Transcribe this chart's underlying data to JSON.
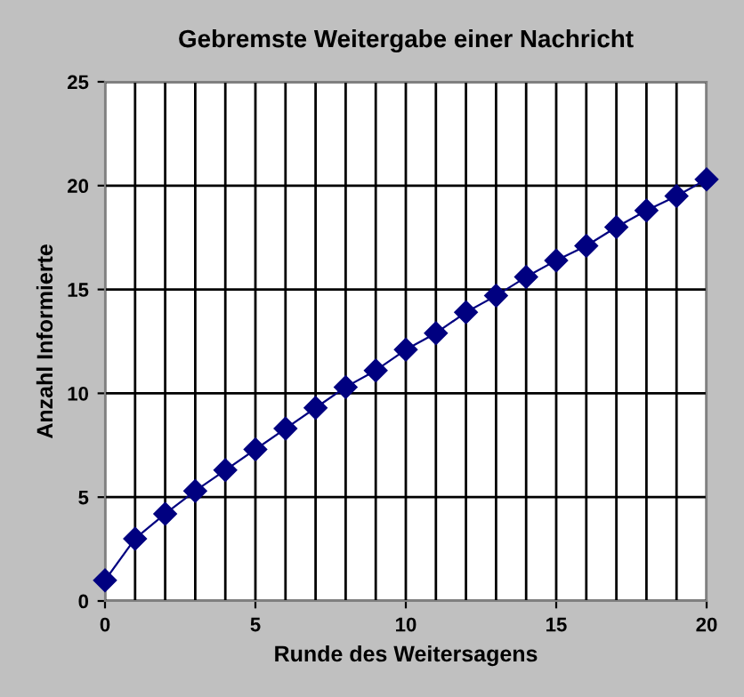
{
  "chart_data": {
    "type": "line",
    "title": "Gebremste Weitergabe einer Nachricht",
    "xlabel": "Runde des Weitersagens",
    "ylabel": "Anzahl Informierte",
    "x": [
      0,
      1,
      2,
      3,
      4,
      5,
      6,
      7,
      8,
      9,
      10,
      11,
      12,
      13,
      14,
      15,
      16,
      17,
      18,
      19,
      20
    ],
    "series": [
      {
        "color": "#000080",
        "values": [
          1.0,
          3.0,
          4.2,
          5.3,
          6.3,
          7.3,
          8.3,
          9.3,
          10.3,
          11.1,
          12.1,
          12.9,
          13.9,
          14.7,
          15.6,
          16.4,
          17.1,
          18.0,
          18.8,
          19.5,
          20.3
        ]
      }
    ],
    "xlim": [
      0,
      20
    ],
    "ylim": [
      0,
      25
    ],
    "xticks": [
      0,
      {
        "value": 1,
        "label": null
      },
      {
        "value": 2,
        "label": null
      },
      {
        "value": 3,
        "label": null
      },
      {
        "value": 4,
        "label": null
      },
      5,
      {
        "value": 6,
        "label": null
      },
      {
        "value": 7,
        "label": null
      },
      {
        "value": 8,
        "label": null
      },
      {
        "value": 9,
        "label": null
      },
      10,
      {
        "value": 11,
        "label": null
      },
      {
        "value": 12,
        "label": null
      },
      {
        "value": 13,
        "label": null
      },
      {
        "value": 14,
        "label": null
      },
      15,
      {
        "value": 16,
        "label": null
      },
      {
        "value": 17,
        "label": null
      },
      {
        "value": 18,
        "label": null
      },
      {
        "value": 19,
        "label": null
      },
      20
    ],
    "yticks": [
      0,
      5,
      10,
      15,
      20,
      25
    ],
    "grid": true,
    "marker": "diamond",
    "line_style": "solid"
  }
}
